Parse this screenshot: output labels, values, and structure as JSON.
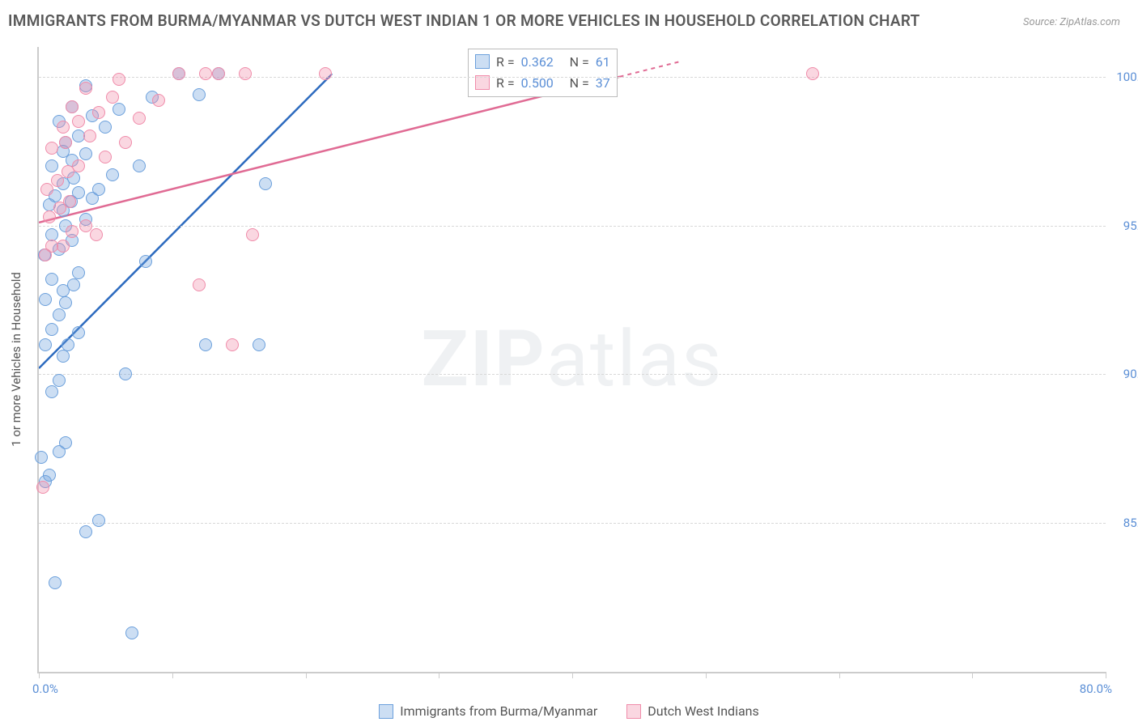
{
  "title": "IMMIGRANTS FROM BURMA/MYANMAR VS DUTCH WEST INDIAN 1 OR MORE VEHICLES IN HOUSEHOLD CORRELATION CHART",
  "source": "Source: ZipAtlas.com",
  "watermark_bold": "ZIP",
  "watermark_light": "atlas",
  "y_axis_title": "1 or more Vehicles in Household",
  "axis_color": "#cccccc",
  "grid_color": "#d8d8d8",
  "tick_label_color": "#5b8fd6",
  "xlim": [
    0,
    80
  ],
  "ylim": [
    80,
    101
  ],
  "x_ticks": [
    0,
    10,
    20,
    30,
    40,
    50,
    60,
    70,
    80
  ],
  "x_min_label": "0.0%",
  "x_max_label": "80.0%",
  "y_ticks": [
    {
      "v": 85,
      "label": "85.0%"
    },
    {
      "v": 90,
      "label": "90.0%"
    },
    {
      "v": 95,
      "label": "95.0%"
    },
    {
      "v": 100,
      "label": "100.0%"
    }
  ],
  "series": [
    {
      "name": "Immigrants from Burma/Myanmar",
      "fill": "rgba(108,160,220,0.35)",
      "stroke": "#6ca0dc",
      "line_color": "#2d6bbf",
      "r": "0.362",
      "n": "61",
      "trend": {
        "x1": 0,
        "y1": 90.2,
        "x2": 22,
        "y2": 100.1
      },
      "points": [
        [
          0.5,
          86.4
        ],
        [
          0.8,
          86.6
        ],
        [
          0.2,
          87.2
        ],
        [
          1.5,
          87.4
        ],
        [
          2.0,
          87.7
        ],
        [
          4.5,
          85.1
        ],
        [
          3.5,
          84.7
        ],
        [
          7.0,
          81.3
        ],
        [
          1.2,
          83.0
        ],
        [
          1.0,
          89.4
        ],
        [
          1.5,
          89.8
        ],
        [
          6.5,
          90.0
        ],
        [
          1.8,
          90.6
        ],
        [
          0.5,
          91.0
        ],
        [
          2.2,
          91.0
        ],
        [
          3.0,
          91.4
        ],
        [
          1.0,
          91.5
        ],
        [
          1.5,
          92.0
        ],
        [
          2.0,
          92.4
        ],
        [
          0.5,
          92.5
        ],
        [
          1.8,
          92.8
        ],
        [
          2.6,
          93.0
        ],
        [
          1.0,
          93.2
        ],
        [
          3.0,
          93.4
        ],
        [
          8.0,
          93.8
        ],
        [
          0.4,
          94.0
        ],
        [
          1.5,
          94.2
        ],
        [
          2.5,
          94.5
        ],
        [
          1.0,
          94.7
        ],
        [
          2.0,
          95.0
        ],
        [
          3.5,
          95.2
        ],
        [
          1.8,
          95.5
        ],
        [
          0.8,
          95.7
        ],
        [
          2.4,
          95.8
        ],
        [
          1.2,
          96.0
        ],
        [
          3.0,
          96.1
        ],
        [
          4.0,
          95.9
        ],
        [
          1.8,
          96.4
        ],
        [
          2.6,
          96.6
        ],
        [
          5.5,
          96.7
        ],
        [
          1.0,
          97.0
        ],
        [
          2.5,
          97.2
        ],
        [
          3.5,
          97.4
        ],
        [
          1.8,
          97.5
        ],
        [
          4.5,
          96.2
        ],
        [
          2.0,
          97.8
        ],
        [
          3.0,
          98.0
        ],
        [
          5.0,
          98.3
        ],
        [
          1.5,
          98.5
        ],
        [
          4.0,
          98.7
        ],
        [
          7.5,
          97.0
        ],
        [
          6.0,
          98.9
        ],
        [
          2.5,
          99.0
        ],
        [
          8.5,
          99.3
        ],
        [
          3.5,
          99.7
        ],
        [
          10.5,
          100.1
        ],
        [
          12.0,
          99.4
        ],
        [
          13.5,
          100.1
        ],
        [
          17.0,
          96.4
        ],
        [
          12.5,
          91.0
        ],
        [
          16.5,
          91.0
        ]
      ]
    },
    {
      "name": "Dutch West Indians",
      "fill": "rgba(240,140,170,0.35)",
      "stroke": "#f08caa",
      "line_color": "#e06b94",
      "r": "0.500",
      "n": "37",
      "trend": {
        "x1": 0,
        "y1": 95.1,
        "x2": 48,
        "y2": 100.5
      },
      "points": [
        [
          0.3,
          86.2
        ],
        [
          0.5,
          94.0
        ],
        [
          1.0,
          94.3
        ],
        [
          1.8,
          94.3
        ],
        [
          2.5,
          94.8
        ],
        [
          0.8,
          95.3
        ],
        [
          1.6,
          95.6
        ],
        [
          2.3,
          95.8
        ],
        [
          3.5,
          95.0
        ],
        [
          4.3,
          94.7
        ],
        [
          0.6,
          96.2
        ],
        [
          1.4,
          96.5
        ],
        [
          2.2,
          96.8
        ],
        [
          3.0,
          97.0
        ],
        [
          5.0,
          97.3
        ],
        [
          1.0,
          97.6
        ],
        [
          2.0,
          97.8
        ],
        [
          3.8,
          98.0
        ],
        [
          6.5,
          97.8
        ],
        [
          1.8,
          98.3
        ],
        [
          3.0,
          98.5
        ],
        [
          4.5,
          98.8
        ],
        [
          2.5,
          99.0
        ],
        [
          5.5,
          99.3
        ],
        [
          7.5,
          98.6
        ],
        [
          3.5,
          99.6
        ],
        [
          6.0,
          99.9
        ],
        [
          9.0,
          99.2
        ],
        [
          10.5,
          100.1
        ],
        [
          12.5,
          100.1
        ],
        [
          13.5,
          100.1
        ],
        [
          15.5,
          100.1
        ],
        [
          16.0,
          94.7
        ],
        [
          12.0,
          93.0
        ],
        [
          21.5,
          100.1
        ],
        [
          58.0,
          100.1
        ],
        [
          14.5,
          91.0
        ]
      ]
    }
  ],
  "top_legend_label_r": "R =",
  "top_legend_label_n": "N ="
}
